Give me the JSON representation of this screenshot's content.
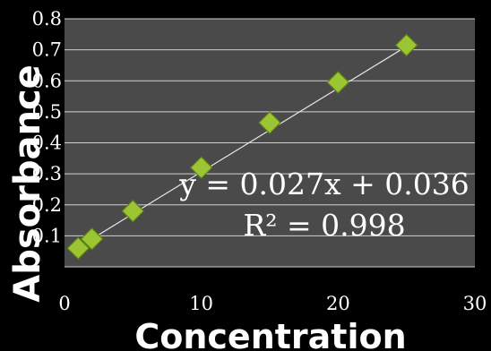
{
  "chart_data": {
    "type": "scatter",
    "title": "",
    "xlabel": "Concentration",
    "ylabel": "Absorbance",
    "xlim": [
      0,
      30
    ],
    "ylim": [
      0,
      0.8
    ],
    "x_ticks": [
      "0",
      "10",
      "20",
      "30"
    ],
    "y_ticks": [
      "0.8",
      "0.7",
      "0.6",
      "0.5",
      "0.4",
      "0.3",
      "0.2",
      "0.1"
    ],
    "grid": true,
    "series": [
      {
        "x": [
          1,
          2,
          5,
          10,
          15,
          20,
          25
        ],
        "y": [
          0.06,
          0.09,
          0.18,
          0.32,
          0.465,
          0.595,
          0.715
        ]
      }
    ],
    "trendline": {
      "slope": 0.027,
      "intercept": 0.036
    },
    "annotations": {
      "equation": "y = 0.027x + 0.036",
      "r_squared": "R² = 0.998"
    },
    "colors": {
      "background": "#000000",
      "plot_area": "#4a4a4a",
      "gridline": "#d0d0d0",
      "trendline": "#e8e8e8",
      "marker": "#9cc534",
      "marker_edge": "#5e7f16"
    }
  }
}
